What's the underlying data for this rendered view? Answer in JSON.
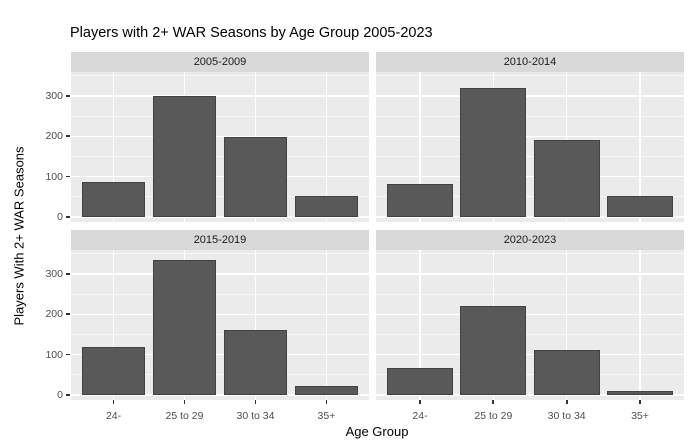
{
  "title": "Players with 2+ WAR Seasons by Age Group 2005-2023",
  "axes": {
    "x_title": "Age Group",
    "y_title": "Players With 2+ WAR Seasons",
    "y_tick_labels": [
      "0",
      "100",
      "200",
      "300"
    ],
    "x_tick_labels": [
      "24-",
      "25 to 29",
      "30 to 34",
      "35+"
    ]
  },
  "chart_data": {
    "type": "bar",
    "title": "Players with 2+ WAR Seasons by Age Group 2005-2023",
    "xlabel": "Age Group",
    "ylabel": "Players With 2+ WAR Seasons",
    "categories": [
      "24-",
      "25 to 29",
      "30 to 34",
      "35+"
    ],
    "facets": [
      {
        "label": "2005-2009",
        "values": [
          87,
          300,
          199,
          51
        ]
      },
      {
        "label": "2010-2014",
        "values": [
          83,
          319,
          190,
          52
        ]
      },
      {
        "label": "2015-2019",
        "values": [
          120,
          334,
          162,
          22
        ]
      },
      {
        "label": "2020-2023",
        "values": [
          66,
          220,
          112,
          11
        ]
      }
    ],
    "ylim": [
      0,
      350
    ],
    "y_major_gridlines": [
      0,
      100,
      200,
      300
    ],
    "y_minor_gridlines": [
      50,
      150,
      250,
      350
    ],
    "grid": "on",
    "legend": "none",
    "style": "ggplot2 facet_wrap 2x2",
    "colors": {
      "bar_fill": "#595959",
      "bar_border": "#424242",
      "panel_background": "#EBEBEB",
      "strip_background": "#D9D9D9",
      "gridline": "#FFFFFF",
      "axis_text": "#4D4D4D",
      "title_text": "#000000"
    }
  }
}
